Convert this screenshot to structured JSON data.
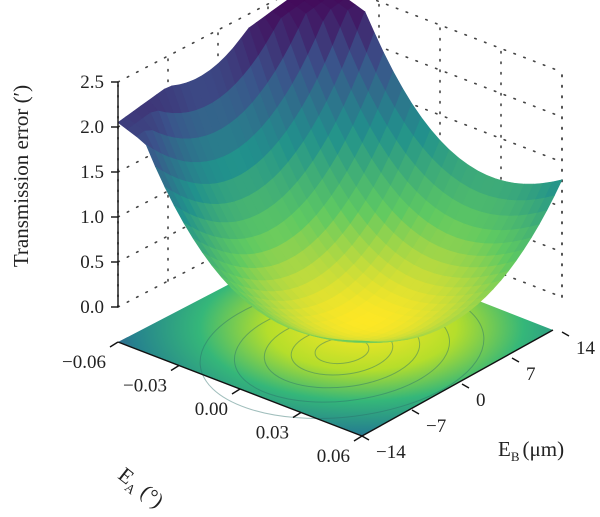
{
  "chart_data": {
    "type": "surface3d",
    "zlabel": "Transmission error (′)",
    "xlabel_main": "E",
    "xlabel_sub": "A",
    "xlabel_unit": "(°)",
    "ylabel_main": "E",
    "ylabel_sub": "B",
    "ylabel_unit": "(μm)",
    "z_ticks": [
      "0.0",
      "0.5",
      "1.0",
      "1.5",
      "2.0",
      "2.5"
    ],
    "z_tick_values": [
      0.0,
      0.5,
      1.0,
      1.5,
      2.0,
      2.5
    ],
    "x_ticks": [
      "−0.06",
      "−0.03",
      "0.00",
      "0.03",
      "0.06"
    ],
    "x_tick_values": [
      -0.06,
      -0.03,
      0.0,
      0.03,
      0.06
    ],
    "y_ticks": [
      "−14",
      "−7",
      "0",
      "7",
      "14"
    ],
    "y_tick_values": [
      -14,
      -7,
      0,
      7,
      14
    ],
    "xlim": [
      -0.06,
      0.06
    ],
    "ylim": [
      -14,
      14
    ],
    "zlim": [
      0,
      2.5
    ],
    "surface_z_corners": {
      "x_min_y_min": 2.05,
      "x_min_y_max": 2.5,
      "x_max_y_min": 1.05,
      "x_max_y_max": 1.6,
      "minimum": 0.0
    },
    "colormap": [
      "#440154",
      "#3b528b",
      "#21918c",
      "#5ec962",
      "#fde725"
    ],
    "contour_projection": true,
    "grid": true
  }
}
